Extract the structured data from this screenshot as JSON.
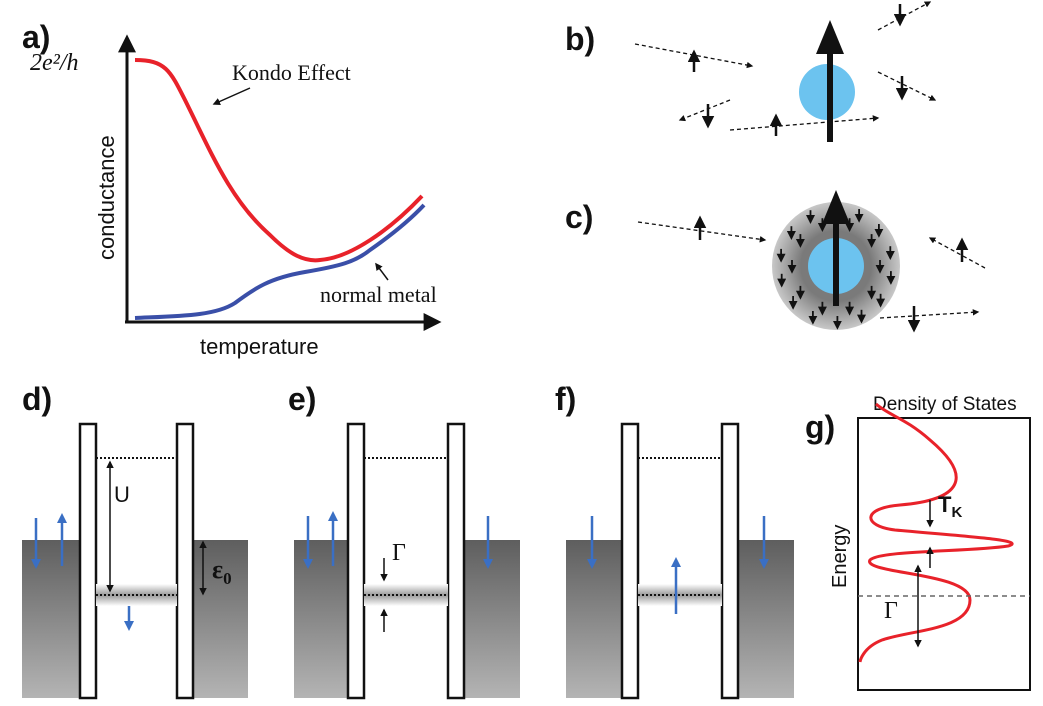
{
  "panels": {
    "a": {
      "label": "a)",
      "y_top_label": "2e²/h",
      "ylabel": "conductance",
      "xlabel": "temperature",
      "kondo_label": "Kondo Effect",
      "normal_label": "normal metal",
      "kondo_color": "#e8222a",
      "normal_color": "#3a4fa8"
    },
    "b": {
      "label": "b)"
    },
    "c": {
      "label": "c)"
    },
    "d": {
      "label": "d)",
      "u_label": "U",
      "eps_label": "ε",
      "eps_sub": "0"
    },
    "e": {
      "label": "e)",
      "gamma_label": "Γ"
    },
    "f": {
      "label": "f)"
    },
    "g": {
      "label": "g)",
      "title": "Density of States",
      "ylabel": "Energy",
      "tk_label": "T",
      "tk_sub": "K",
      "gamma_label": "Γ",
      "curve_color": "#e8222a"
    }
  },
  "colors": {
    "dot_blue": "#6cc3ef",
    "spin_blue": "#3a6fc4",
    "lead_gray": "#6d6d6d"
  }
}
